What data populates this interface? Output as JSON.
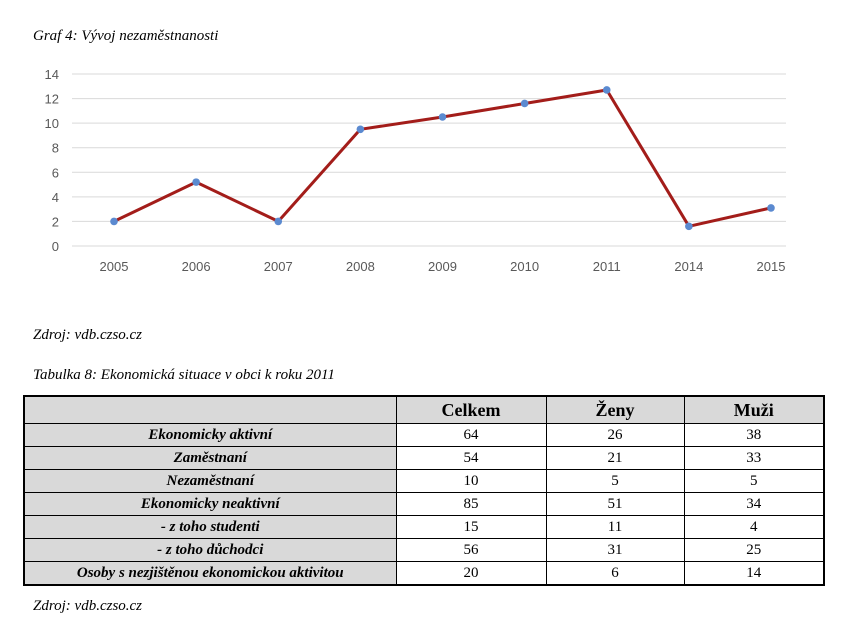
{
  "graph_caption": "Graf 4: Vývoj nezaměstnanosti",
  "graph_source": "Zdroj: vdb.czso.cz",
  "table_caption": "Tabulka 8: Ekonomická situace v obci k roku 2011",
  "table_source": "Zdroj: vdb.czso.cz",
  "chart_data": {
    "type": "line",
    "categories": [
      "2005",
      "2006",
      "2007",
      "2008",
      "2009",
      "2010",
      "2011",
      "2014",
      "2015"
    ],
    "values": [
      2.0,
      5.2,
      2.0,
      9.5,
      10.5,
      11.6,
      12.7,
      1.6,
      3.1
    ],
    "yticks": [
      0,
      2,
      4,
      6,
      8,
      10,
      12,
      14
    ],
    "ylim": [
      0,
      14
    ],
    "grid": true,
    "line_color": "#a31d1a",
    "marker_color": "#5b8ad0",
    "grid_color": "#d9d9d9"
  },
  "table": {
    "headers": [
      "",
      "Celkem",
      "Ženy",
      "Muži"
    ],
    "rows": [
      {
        "label": "Ekonomicky aktivní",
        "values": [
          "64",
          "26",
          "38"
        ]
      },
      {
        "label": "Zaměstnaní",
        "values": [
          "54",
          "21",
          "33"
        ]
      },
      {
        "label": "Nezaměstnaní",
        "values": [
          "10",
          "5",
          "5"
        ]
      },
      {
        "label": "Ekonomicky neaktivní",
        "values": [
          "85",
          "51",
          "34"
        ]
      },
      {
        "label": "- z toho studenti",
        "values": [
          "15",
          "11",
          "4"
        ]
      },
      {
        "label": "- z toho důchodci",
        "values": [
          "56",
          "31",
          "25"
        ]
      },
      {
        "label": "Osoby s nezjištěnou ekonomickou aktivitou",
        "values": [
          "20",
          "6",
          "14"
        ]
      }
    ]
  }
}
